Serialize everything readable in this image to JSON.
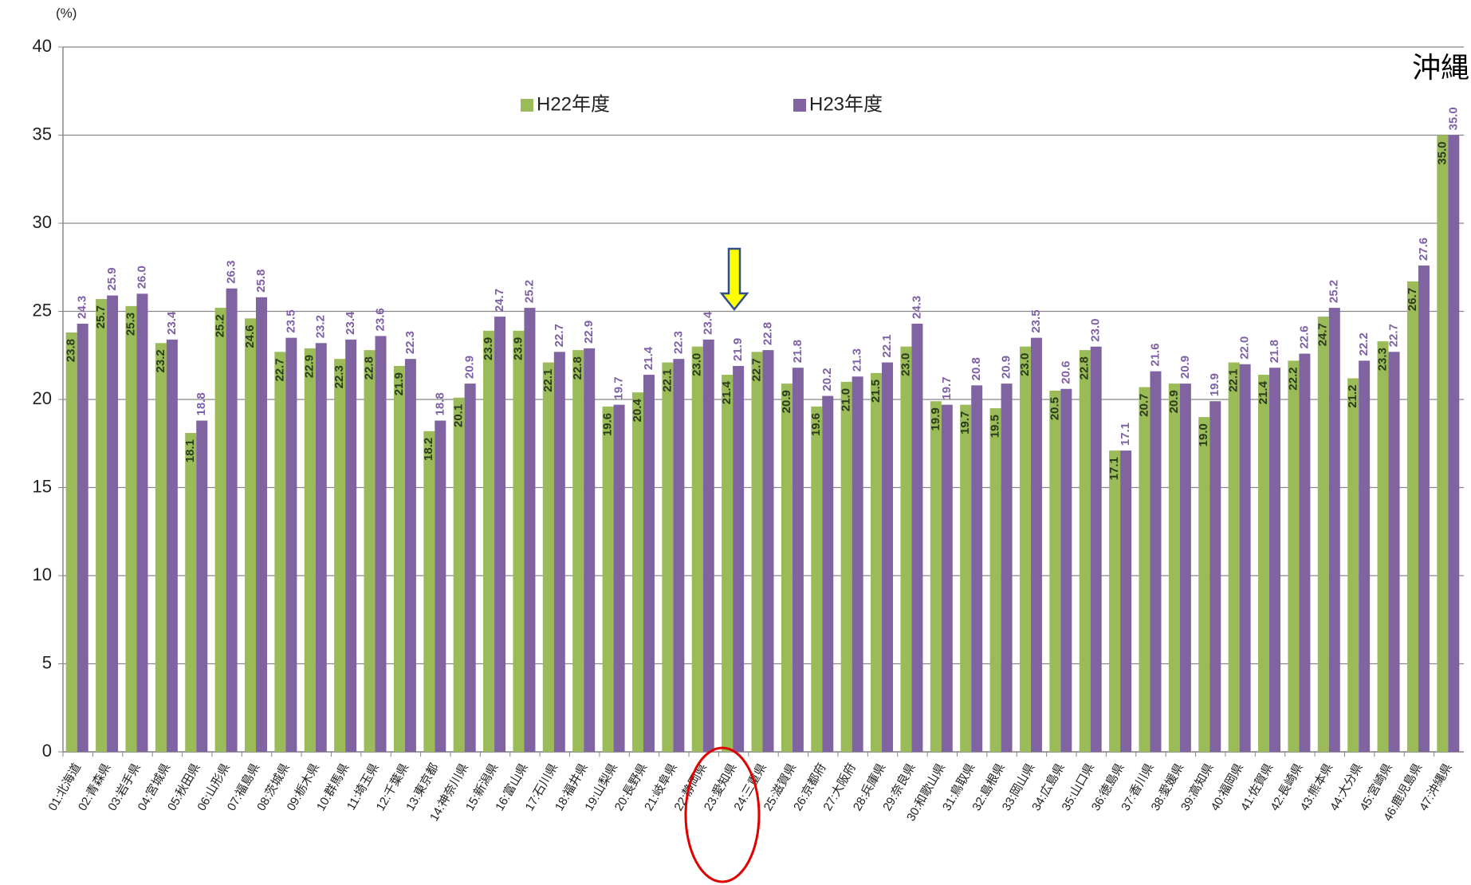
{
  "chart_data": {
    "type": "bar",
    "y_axis_unit": "(%)",
    "annotation": "沖縄",
    "categories": [
      "01:北海道",
      "02:青森県",
      "03:岩手県",
      "04:宮城県",
      "05:秋田県",
      "06:山形県",
      "07:福島県",
      "08:茨城県",
      "09:栃木県",
      "10:群馬県",
      "11:埼玉県",
      "12:千葉県",
      "13:東京都",
      "14:神奈川県",
      "15:新潟県",
      "16:富山県",
      "17:石川県",
      "18:福井県",
      "19:山梨県",
      "20:長野県",
      "21:岐阜県",
      "22:静岡県",
      "23:愛知県",
      "24:三重県",
      "25:滋賀県",
      "26:京都府",
      "27:大阪府",
      "28:兵庫県",
      "29:奈良県",
      "30:和歌山県",
      "31:鳥取県",
      "32:島根県",
      "33:岡山県",
      "34:広島県",
      "35:山口県",
      "36:徳島県",
      "37:香川県",
      "38:愛媛県",
      "39:高知県",
      "40:福岡県",
      "41:佐賀県",
      "42:長崎県",
      "43:熊本県",
      "44:大分県",
      "45:宮崎県",
      "46:鹿児島県",
      "47:沖縄県"
    ],
    "series": [
      {
        "name": "H22年度",
        "color": "#9bbb59",
        "values": [
          23.8,
          25.7,
          25.3,
          23.2,
          18.1,
          25.2,
          24.6,
          22.7,
          22.9,
          22.3,
          22.8,
          21.9,
          18.2,
          20.1,
          23.9,
          23.9,
          22.1,
          22.8,
          19.6,
          20.4,
          22.1,
          23.0,
          21.4,
          22.7,
          20.9,
          19.6,
          21.0,
          21.5,
          23.0,
          19.9,
          19.7,
          19.5,
          23.0,
          20.5,
          22.8,
          17.1,
          20.7,
          20.9,
          19.0,
          22.1,
          21.4,
          22.2,
          24.7,
          21.2,
          23.3,
          26.7,
          35.0
        ],
        "value_labels": [
          "23.8",
          "25.7",
          "25.3",
          "23.2",
          "18.1",
          "25.2",
          "24.6",
          "22.7",
          "22.9",
          "22.3",
          "22.8",
          "21.9",
          "18.2",
          "20.1",
          "23.9",
          "23.9",
          "22.1",
          "22.8",
          "19.6",
          "20.4",
          "22.1",
          "23.0",
          "21.4",
          "22.7",
          "20.9",
          "19.6",
          "21.0",
          "21.5",
          "23.0",
          "19.9",
          "19.7",
          "19.5",
          "23.0",
          "20.5",
          "22.8",
          "17.1",
          "20.7",
          "20.9",
          "19.0",
          "22.1",
          "21.4",
          "22.2",
          "24.7",
          "21.2",
          "23.3",
          "26.7",
          "35.0"
        ]
      },
      {
        "name": "H23年度",
        "color": "#8064a2",
        "values": [
          24.3,
          25.9,
          26.0,
          23.4,
          18.8,
          26.3,
          25.8,
          23.5,
          23.2,
          23.4,
          23.6,
          22.3,
          18.8,
          20.9,
          24.7,
          25.2,
          22.7,
          22.9,
          19.7,
          21.4,
          22.3,
          23.4,
          21.9,
          22.8,
          21.8,
          20.2,
          21.3,
          22.1,
          24.3,
          19.7,
          20.8,
          20.9,
          23.5,
          20.6,
          23.0,
          17.1,
          21.6,
          20.9,
          19.9,
          22.0,
          21.8,
          22.6,
          25.2,
          22.2,
          22.7,
          27.6,
          35.0
        ],
        "value_labels": [
          "24.3",
          "25.9",
          "26.0",
          "23.4",
          "18.8",
          "26.3",
          "25.8",
          "23.5",
          "23.2",
          "23.4",
          "23.6",
          "22.3",
          "18.8",
          "20.9",
          "24.7",
          "25.2",
          "22.7",
          "22.9",
          "19.7",
          "21.4",
          "22.3",
          "23.4",
          "21.9",
          "22.8",
          "21.8",
          "20.2",
          "21.3",
          "22.1",
          "24.3",
          "19.7",
          "20.8",
          "20.9",
          "23.5",
          "20.6",
          "23.0",
          "17.1",
          "21.6",
          "20.9",
          "19.9",
          "22.0",
          "21.8",
          "22.6",
          "25.2",
          "22.2",
          "22.7",
          "27.6",
          "35.0"
        ]
      }
    ],
    "ylim": [
      0,
      40
    ],
    "yticks": [
      0,
      5,
      10,
      15,
      20,
      25,
      30,
      35,
      40
    ],
    "grid": true
  }
}
